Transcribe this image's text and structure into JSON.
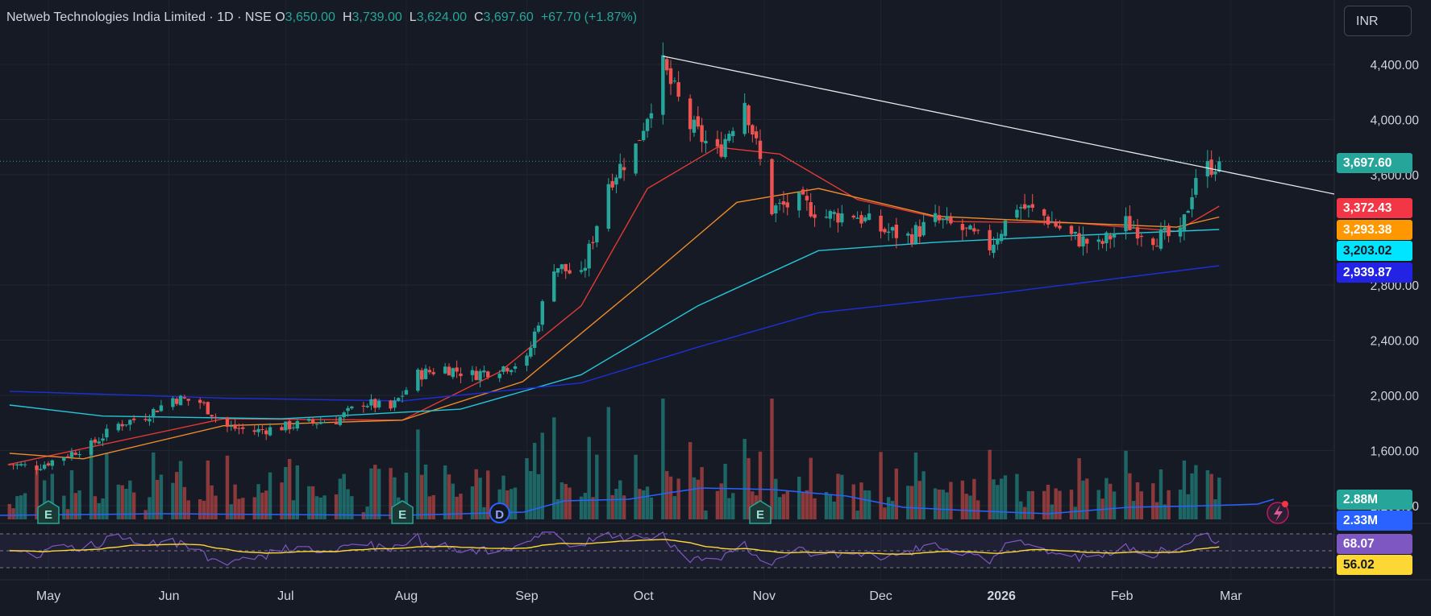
{
  "header": {
    "symbol": "Netweb Technologies India Limited · 1D · NSE",
    "open_label": "O",
    "open": "3,650.00",
    "high_label": "H",
    "high": "3,739.00",
    "low_label": "L",
    "low": "3,624.00",
    "close_label": "C",
    "close": "3,697.60",
    "change": "+67.70 (+1.87%)"
  },
  "currency_button": "INR",
  "colors": {
    "background": "#161a25",
    "up": "#26a69a",
    "down": "#ef5350",
    "ema20": "#e53935",
    "ema50": "#f28c28",
    "ema100": "#26c6da",
    "ema200": "#1e2fd6",
    "volume_ma": "#2962ff",
    "rsi": "#7e57c2",
    "rsi_ma": "#fdd835",
    "trendline": "#e8e8e8"
  },
  "price_tags": [
    {
      "value": "3,697.60",
      "bg": "#26a69a",
      "fg": "#ffffff"
    },
    {
      "value": "3,372.43",
      "bg": "#f23645",
      "fg": "#ffffff"
    },
    {
      "value": "3,293.38",
      "bg": "#ff9800",
      "fg": "#ffffff"
    },
    {
      "value": "3,203.02",
      "bg": "#00e5ff",
      "fg": "#131722"
    },
    {
      "value": "2,939.87",
      "bg": "#2323e6",
      "fg": "#ffffff"
    }
  ],
  "volume_tags": [
    {
      "value": "2.88M",
      "bg": "#26a69a",
      "fg": "#ffffff"
    },
    {
      "value": "2.33M",
      "bg": "#2962ff",
      "fg": "#ffffff"
    }
  ],
  "rsi_tags": [
    {
      "value": "68.07",
      "bg": "#7e57c2",
      "fg": "#ffffff"
    },
    {
      "value": "56.02",
      "bg": "#fdd835",
      "fg": "#131722"
    }
  ],
  "event_markers": [
    {
      "label": "E",
      "date": "2025-05-01",
      "type": "earnings"
    },
    {
      "label": "E",
      "date": "2025-07-31",
      "type": "earnings"
    },
    {
      "label": "D",
      "date": "2025-08-25",
      "type": "dividend"
    },
    {
      "label": "E",
      "date": "2025-10-31",
      "type": "earnings"
    }
  ],
  "chart_data": {
    "type": "candlestick",
    "title": "Netweb Technologies India Limited · 1D · NSE",
    "price_axis": {
      "ylim": [
        1300,
        4600
      ],
      "ticks": [
        "4,400.00",
        "4,000.00",
        "3,600.00",
        "2,800.00",
        "2,400.00",
        "2,000.00",
        "1,600.00",
        "1,200.00"
      ],
      "tick_values": [
        4400,
        4000,
        3600,
        2800,
        2400,
        2000,
        1600,
        1200
      ]
    },
    "time_axis": {
      "labels": [
        "May",
        "Jun",
        "Jul",
        "Aug",
        "Sep",
        "Oct",
        "Nov",
        "Dec",
        "2026",
        "Feb",
        "Mar"
      ],
      "dates": [
        "2025-05-01",
        "2025-06-01",
        "2025-07-01",
        "2025-08-01",
        "2025-09-01",
        "2025-10-01",
        "2025-11-01",
        "2025-12-01",
        "2026-01-01",
        "2026-02-01",
        "2026-03-01"
      ]
    },
    "last_close": 3697.6,
    "anchors": [
      {
        "date": "2025-04-21",
        "price": 1500
      },
      {
        "date": "2025-04-28",
        "price": 1480
      },
      {
        "date": "2025-05-05",
        "price": 1560
      },
      {
        "date": "2025-05-12",
        "price": 1640
      },
      {
        "date": "2025-05-19",
        "price": 1790
      },
      {
        "date": "2025-05-26",
        "price": 1850
      },
      {
        "date": "2025-06-02",
        "price": 1980
      },
      {
        "date": "2025-06-09",
        "price": 1950
      },
      {
        "date": "2025-06-16",
        "price": 1770
      },
      {
        "date": "2025-06-23",
        "price": 1740
      },
      {
        "date": "2025-06-30",
        "price": 1770
      },
      {
        "date": "2025-07-07",
        "price": 1800
      },
      {
        "date": "2025-07-14",
        "price": 1820
      },
      {
        "date": "2025-07-21",
        "price": 1950
      },
      {
        "date": "2025-07-28",
        "price": 1900
      },
      {
        "date": "2025-08-04",
        "price": 2150
      },
      {
        "date": "2025-08-11",
        "price": 2200
      },
      {
        "date": "2025-08-18",
        "price": 2150
      },
      {
        "date": "2025-08-25",
        "price": 2200
      },
      {
        "date": "2025-09-01",
        "price": 2250
      },
      {
        "date": "2025-09-08",
        "price": 2950
      },
      {
        "date": "2025-09-15",
        "price": 2850
      },
      {
        "date": "2025-09-22",
        "price": 3550
      },
      {
        "date": "2025-09-29",
        "price": 3800
      },
      {
        "date": "2025-10-06",
        "price": 4380
      },
      {
        "date": "2025-10-13",
        "price": 3950
      },
      {
        "date": "2025-10-20",
        "price": 3750
      },
      {
        "date": "2025-10-27",
        "price": 4150
      },
      {
        "date": "2025-11-03",
        "price": 3350
      },
      {
        "date": "2025-11-10",
        "price": 3400
      },
      {
        "date": "2025-11-17",
        "price": 3300
      },
      {
        "date": "2025-11-24",
        "price": 3320
      },
      {
        "date": "2025-12-01",
        "price": 3200
      },
      {
        "date": "2025-12-08",
        "price": 3150
      },
      {
        "date": "2025-12-15",
        "price": 3270
      },
      {
        "date": "2025-12-22",
        "price": 3200
      },
      {
        "date": "2025-12-29",
        "price": 3080
      },
      {
        "date": "2026-01-05",
        "price": 3380
      },
      {
        "date": "2026-01-12",
        "price": 3300
      },
      {
        "date": "2026-01-19",
        "price": 3150
      },
      {
        "date": "2026-01-26",
        "price": 3080
      },
      {
        "date": "2026-02-02",
        "price": 3250
      },
      {
        "date": "2026-02-09",
        "price": 3150
      },
      {
        "date": "2026-02-16",
        "price": 3150
      },
      {
        "date": "2026-02-20",
        "price": 3600
      },
      {
        "date": "2026-02-26",
        "price": 3697.6
      }
    ],
    "trendline": [
      {
        "date": "2025-10-06",
        "price": 4460
      },
      {
        "date": "2026-03-01",
        "price": 3460
      }
    ],
    "moving_averages": [
      {
        "color": "#e53935",
        "last": 3372.43,
        "points": [
          {
            "date": "2025-04-21",
            "price": 1500
          },
          {
            "date": "2025-06-15",
            "price": 1830
          },
          {
            "date": "2025-07-31",
            "price": 1820
          },
          {
            "date": "2025-08-25",
            "price": 2170
          },
          {
            "date": "2025-09-15",
            "price": 2650
          },
          {
            "date": "2025-10-02",
            "price": 3500
          },
          {
            "date": "2025-10-20",
            "price": 3800
          },
          {
            "date": "2025-11-05",
            "price": 3750
          },
          {
            "date": "2025-11-25",
            "price": 3420
          },
          {
            "date": "2025-12-20",
            "price": 3260
          },
          {
            "date": "2026-01-20",
            "price": 3250
          },
          {
            "date": "2026-02-15",
            "price": 3190
          },
          {
            "date": "2026-02-26",
            "price": 3372.43
          }
        ]
      },
      {
        "color": "#f28c28",
        "last": 3293.38,
        "points": [
          {
            "date": "2025-04-21",
            "price": 1580
          },
          {
            "date": "2025-05-10",
            "price": 1540
          },
          {
            "date": "2025-06-15",
            "price": 1780
          },
          {
            "date": "2025-07-31",
            "price": 1820
          },
          {
            "date": "2025-08-31",
            "price": 2100
          },
          {
            "date": "2025-09-30",
            "price": 2800
          },
          {
            "date": "2025-10-25",
            "price": 3400
          },
          {
            "date": "2025-11-15",
            "price": 3500
          },
          {
            "date": "2025-12-15",
            "price": 3300
          },
          {
            "date": "2026-01-20",
            "price": 3250
          },
          {
            "date": "2026-02-15",
            "price": 3220
          },
          {
            "date": "2026-02-26",
            "price": 3293.38
          }
        ]
      },
      {
        "color": "#26c6da",
        "last": 3203.02,
        "points": [
          {
            "date": "2025-04-21",
            "price": 1930
          },
          {
            "date": "2025-05-15",
            "price": 1850
          },
          {
            "date": "2025-06-30",
            "price": 1830
          },
          {
            "date": "2025-08-15",
            "price": 1900
          },
          {
            "date": "2025-09-15",
            "price": 2150
          },
          {
            "date": "2025-10-15",
            "price": 2650
          },
          {
            "date": "2025-11-15",
            "price": 3050
          },
          {
            "date": "2025-12-15",
            "price": 3110
          },
          {
            "date": "2026-01-20",
            "price": 3160
          },
          {
            "date": "2026-02-26",
            "price": 3203.02
          }
        ]
      },
      {
        "color": "#1e2fd6",
        "last": 2939.87,
        "points": [
          {
            "date": "2025-04-21",
            "price": 2030
          },
          {
            "date": "2025-06-15",
            "price": 1980
          },
          {
            "date": "2025-07-31",
            "price": 1960
          },
          {
            "date": "2025-09-15",
            "price": 2090
          },
          {
            "date": "2025-10-15",
            "price": 2350
          },
          {
            "date": "2025-11-15",
            "price": 2600
          },
          {
            "date": "2025-12-31",
            "price": 2740
          },
          {
            "date": "2026-02-26",
            "price": 2939.87
          }
        ]
      }
    ],
    "volume": {
      "last": "2.88M",
      "ma_last": "2.33M"
    },
    "rsi": {
      "value": 68.07,
      "ma": 56.02,
      "bands": [
        70,
        50,
        30
      ]
    }
  }
}
